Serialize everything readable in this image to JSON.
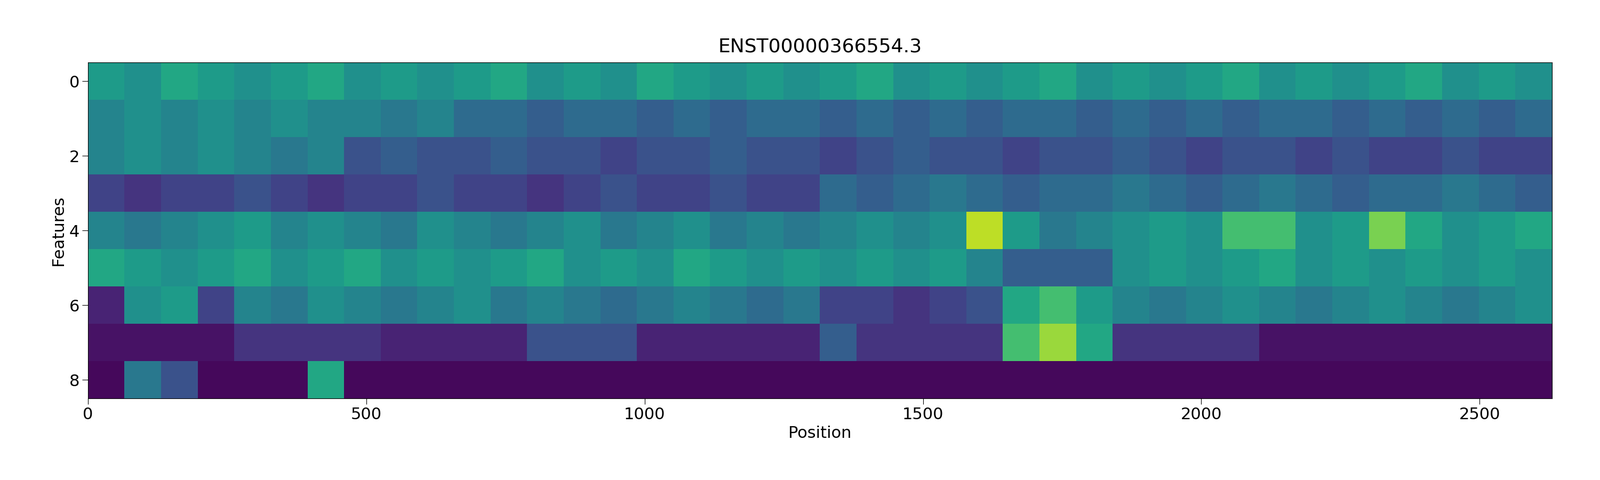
{
  "chart_data": {
    "type": "heatmap",
    "title": "ENST00000366554.3",
    "x_label": "Position",
    "y_label": "Features",
    "color": "viridis",
    "xlim": [
      0,
      2630
    ],
    "ylim": [
      8.5,
      -0.5
    ],
    "xticks": [
      0,
      500,
      1000,
      1500,
      2000,
      2500
    ],
    "yticks": [
      0,
      2,
      4,
      6,
      8
    ],
    "zlim": [
      0,
      1
    ],
    "cells": [
      [
        0.55,
        0.5,
        0.6,
        0.55,
        0.5,
        0.55,
        0.6,
        0.5,
        0.55,
        0.5,
        0.55,
        0.6,
        0.5,
        0.55,
        0.5,
        0.6,
        0.55,
        0.5,
        0.55,
        0.5,
        0.55,
        0.6,
        0.5,
        0.55,
        0.5,
        0.55,
        0.6,
        0.5,
        0.55,
        0.5,
        0.55,
        0.6,
        0.5,
        0.55,
        0.5,
        0.55,
        0.6,
        0.5,
        0.55,
        0.5
      ],
      [
        0.45,
        0.5,
        0.45,
        0.5,
        0.45,
        0.5,
        0.45,
        0.45,
        0.4,
        0.45,
        0.35,
        0.35,
        0.3,
        0.35,
        0.35,
        0.3,
        0.35,
        0.3,
        0.35,
        0.35,
        0.3,
        0.35,
        0.3,
        0.35,
        0.3,
        0.35,
        0.35,
        0.3,
        0.35,
        0.3,
        0.35,
        0.3,
        0.35,
        0.35,
        0.3,
        0.35,
        0.3,
        0.35,
        0.3,
        0.35
      ],
      [
        0.45,
        0.5,
        0.45,
        0.5,
        0.45,
        0.4,
        0.45,
        0.25,
        0.3,
        0.25,
        0.25,
        0.3,
        0.25,
        0.25,
        0.2,
        0.25,
        0.25,
        0.3,
        0.25,
        0.25,
        0.2,
        0.25,
        0.3,
        0.25,
        0.25,
        0.2,
        0.25,
        0.25,
        0.3,
        0.25,
        0.2,
        0.25,
        0.25,
        0.2,
        0.25,
        0.2,
        0.2,
        0.25,
        0.2,
        0.2
      ],
      [
        0.2,
        0.15,
        0.2,
        0.2,
        0.25,
        0.2,
        0.15,
        0.2,
        0.2,
        0.25,
        0.2,
        0.2,
        0.15,
        0.2,
        0.25,
        0.2,
        0.2,
        0.25,
        0.2,
        0.2,
        0.35,
        0.3,
        0.35,
        0.4,
        0.35,
        0.3,
        0.35,
        0.35,
        0.4,
        0.35,
        0.3,
        0.35,
        0.4,
        0.35,
        0.3,
        0.35,
        0.35,
        0.4,
        0.35,
        0.3
      ],
      [
        0.45,
        0.4,
        0.45,
        0.5,
        0.55,
        0.45,
        0.5,
        0.45,
        0.4,
        0.5,
        0.45,
        0.4,
        0.45,
        0.5,
        0.4,
        0.45,
        0.5,
        0.4,
        0.45,
        0.4,
        0.45,
        0.5,
        0.45,
        0.5,
        0.9,
        0.55,
        0.4,
        0.45,
        0.5,
        0.55,
        0.5,
        0.7,
        0.7,
        0.5,
        0.55,
        0.8,
        0.6,
        0.5,
        0.55,
        0.6
      ],
      [
        0.6,
        0.55,
        0.5,
        0.55,
        0.6,
        0.5,
        0.55,
        0.6,
        0.5,
        0.55,
        0.5,
        0.55,
        0.6,
        0.5,
        0.55,
        0.5,
        0.6,
        0.55,
        0.5,
        0.55,
        0.5,
        0.55,
        0.5,
        0.55,
        0.45,
        0.3,
        0.3,
        0.3,
        0.5,
        0.55,
        0.5,
        0.55,
        0.6,
        0.5,
        0.55,
        0.5,
        0.55,
        0.5,
        0.55,
        0.5
      ],
      [
        0.1,
        0.5,
        0.55,
        0.2,
        0.45,
        0.4,
        0.5,
        0.45,
        0.4,
        0.45,
        0.5,
        0.4,
        0.45,
        0.4,
        0.35,
        0.4,
        0.45,
        0.4,
        0.35,
        0.4,
        0.2,
        0.2,
        0.15,
        0.2,
        0.25,
        0.6,
        0.7,
        0.55,
        0.45,
        0.4,
        0.45,
        0.5,
        0.45,
        0.4,
        0.45,
        0.5,
        0.45,
        0.4,
        0.45,
        0.5
      ],
      [
        0.05,
        0.05,
        0.05,
        0.05,
        0.15,
        0.15,
        0.15,
        0.15,
        0.1,
        0.1,
        0.1,
        0.1,
        0.25,
        0.25,
        0.25,
        0.1,
        0.1,
        0.1,
        0.1,
        0.1,
        0.3,
        0.15,
        0.15,
        0.15,
        0.15,
        0.7,
        0.85,
        0.6,
        0.15,
        0.15,
        0.15,
        0.15,
        0.05,
        0.05,
        0.05,
        0.05,
        0.05,
        0.05,
        0.05,
        0.05
      ],
      [
        0.02,
        0.4,
        0.25,
        0.02,
        0.02,
        0.02,
        0.6,
        0.02,
        0.02,
        0.02,
        0.02,
        0.02,
        0.02,
        0.02,
        0.02,
        0.02,
        0.02,
        0.02,
        0.02,
        0.02,
        0.02,
        0.02,
        0.02,
        0.02,
        0.02,
        0.02,
        0.02,
        0.02,
        0.02,
        0.02,
        0.02,
        0.02,
        0.02,
        0.02,
        0.02,
        0.02,
        0.02,
        0.02,
        0.02,
        0.02
      ]
    ]
  }
}
